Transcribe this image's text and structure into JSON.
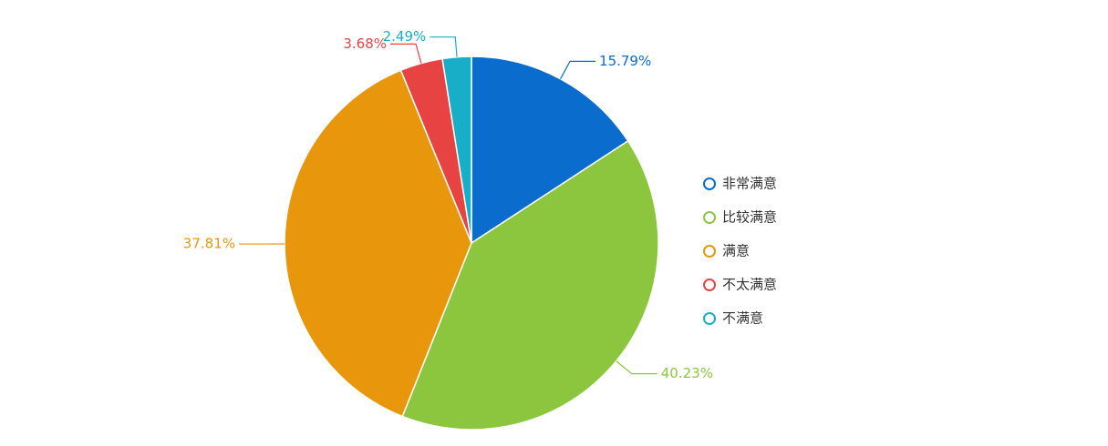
{
  "chart_data": {
    "type": "pie",
    "categories": [
      "非常满意",
      "比较满意",
      "满意",
      "不太满意",
      "不满意"
    ],
    "values": [
      15.79,
      40.23,
      37.81,
      3.68,
      2.49
    ],
    "value_labels": [
      "15.79%",
      "40.23%",
      "37.81%",
      "3.68%",
      "2.49%"
    ],
    "colors": [
      "#0a6ccc",
      "#8cc63f",
      "#e8960c",
      "#e84343",
      "#19aec8"
    ],
    "legend": "right"
  }
}
